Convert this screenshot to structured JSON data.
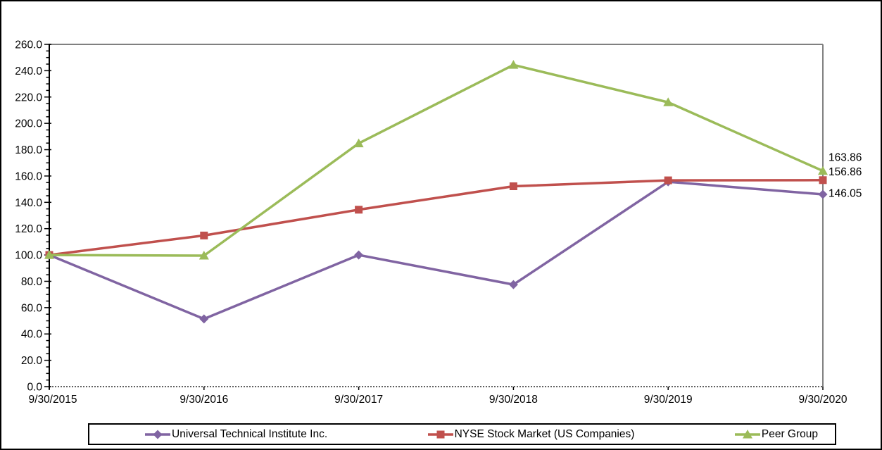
{
  "chart_data": {
    "type": "line",
    "title": "",
    "xlabel": "",
    "ylabel": "",
    "x_labels": [
      "9/30/2015",
      "9/30/2016",
      "9/30/2017",
      "9/30/2018",
      "9/30/2019",
      "9/30/2020"
    ],
    "series": [
      {
        "name": "Universal Technical Institute Inc.",
        "marker": "diamond",
        "color": "#8064A2",
        "values": [
          100.0,
          51.4,
          100.0,
          77.5,
          155.6,
          146.05
        ],
        "end_label": "146.05"
      },
      {
        "name": "NYSE Stock Market (US Companies)",
        "marker": "square",
        "color": "#C0504D",
        "values": [
          100.0,
          114.8,
          134.4,
          152.2,
          156.7,
          156.86
        ],
        "end_label": "156.86"
      },
      {
        "name": "Peer Group",
        "marker": "triangle",
        "color": "#9BBB59",
        "values": [
          100.0,
          99.5,
          184.8,
          244.4,
          216.0,
          163.86
        ],
        "end_label": "163.86"
      }
    ],
    "ylim": [
      0,
      260
    ],
    "y_major_step": 20,
    "y_minor_step": 5,
    "y_tick_labels": [
      "0.0",
      "20.0",
      "40.0",
      "60.0",
      "80.0",
      "100.0",
      "120.0",
      "140.0",
      "160.0",
      "180.0",
      "200.0",
      "220.0",
      "240.0",
      "260.0"
    ],
    "grid": false,
    "legend_position": "bottom",
    "plot_border_color": "#808080",
    "axis_color": "#000000",
    "background_color": "#FFFFFF"
  }
}
